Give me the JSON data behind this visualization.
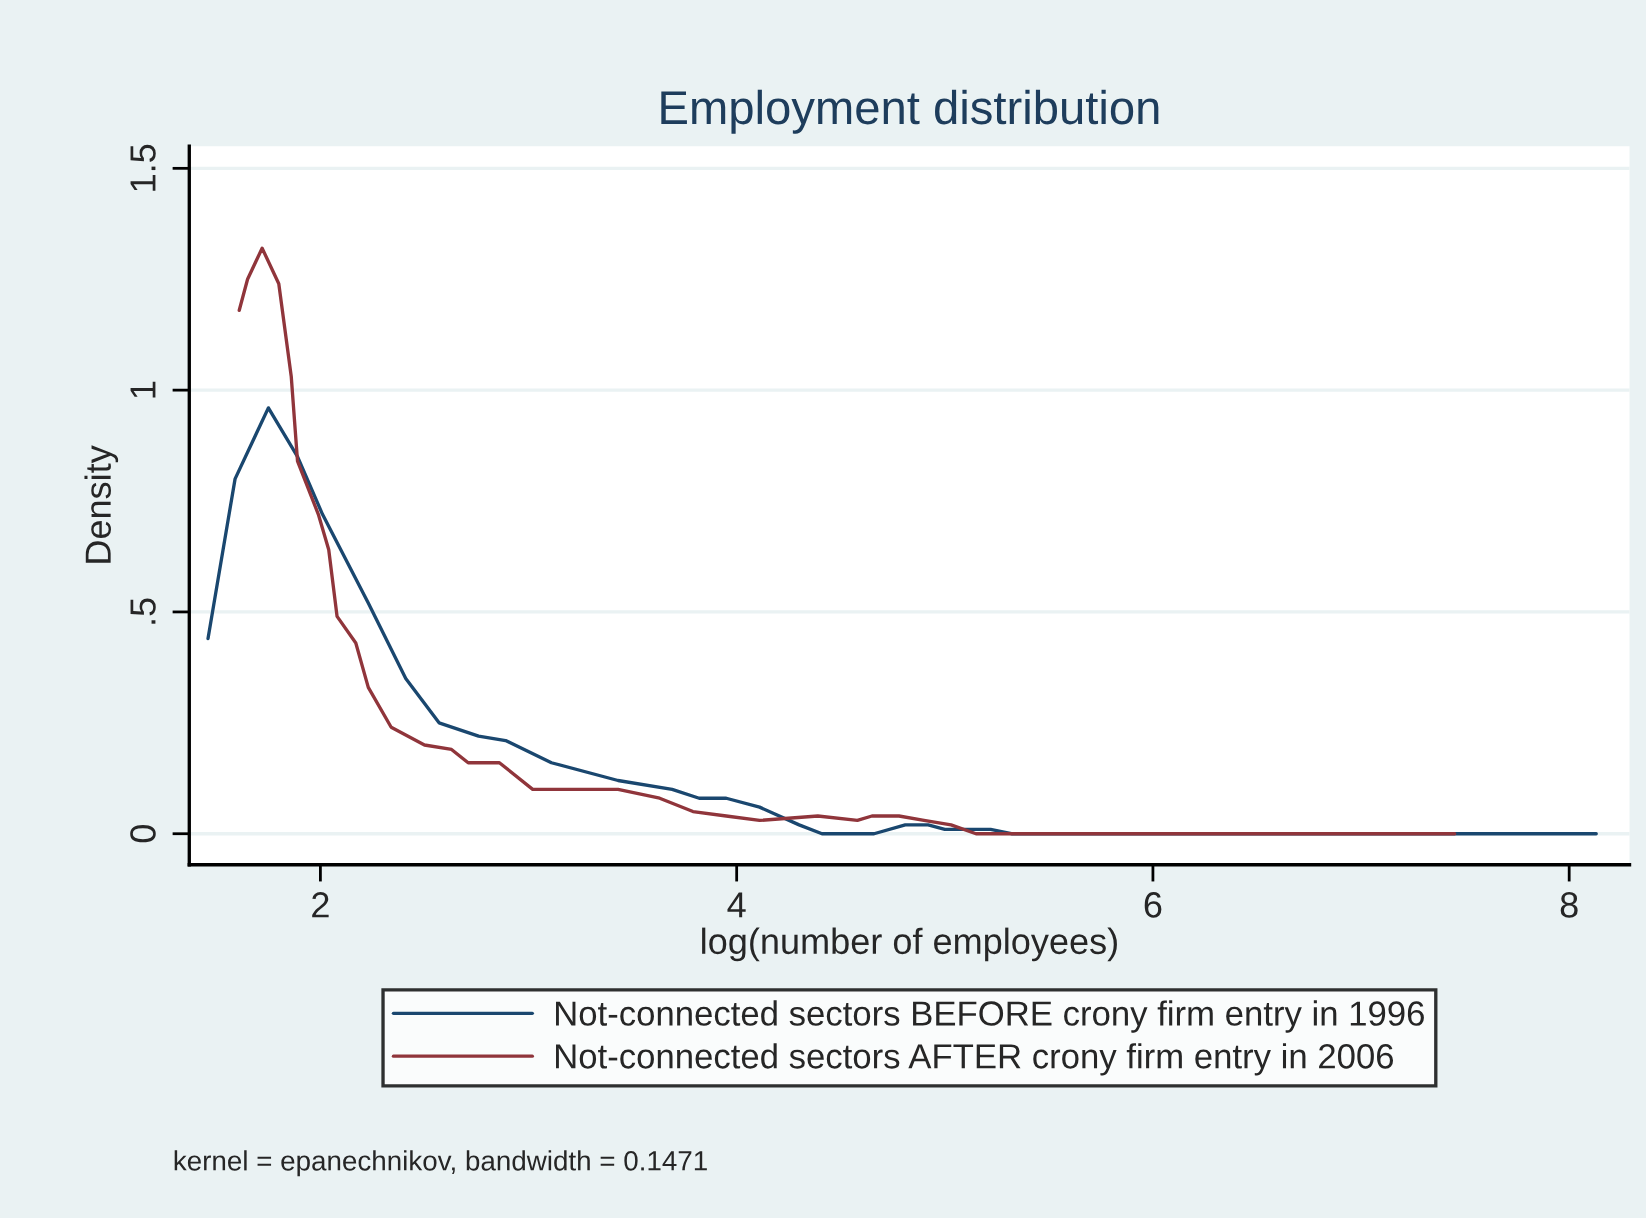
{
  "chart_data": {
    "type": "line",
    "title": "Employment distribution",
    "xlabel": "log(number of employees)",
    "ylabel": "Density",
    "xlim": [
      1.37,
      8.29
    ],
    "ylim": [
      -0.07,
      1.55
    ],
    "xticks": [
      2,
      4,
      6,
      8
    ],
    "yticks": [
      {
        "value": 0,
        "label": "0"
      },
      {
        "value": 0.5,
        "label": ".5"
      },
      {
        "value": 1,
        "label": "1"
      },
      {
        "value": 1.5,
        "label": "1.5"
      }
    ],
    "grid": "y",
    "legend": "bottom",
    "marker": "none",
    "line_style": "solid",
    "series": [
      {
        "name": "Not-connected sectors BEFORE crony firm entry in 1996",
        "color": "#1a476f",
        "x": [
          1.46,
          1.59,
          1.75,
          1.89,
          2.01,
          2.23,
          2.41,
          2.57,
          2.76,
          2.89,
          3.11,
          3.43,
          3.69,
          3.82,
          3.95,
          4.11,
          4.3,
          4.41,
          4.66,
          4.81,
          4.92,
          5.0,
          5.22,
          5.32,
          6.0,
          7.0,
          8.13
        ],
        "values": [
          0.44,
          0.8,
          0.96,
          0.85,
          0.72,
          0.52,
          0.35,
          0.25,
          0.22,
          0.21,
          0.16,
          0.12,
          0.1,
          0.08,
          0.08,
          0.06,
          0.02,
          0.0,
          0.0,
          0.02,
          0.02,
          0.01,
          0.01,
          0.0,
          0.0,
          0.0,
          0.0
        ]
      },
      {
        "name": "Not-connected sectors AFTER crony firm entry in 2006",
        "color": "#90353b",
        "x": [
          1.61,
          1.65,
          1.72,
          1.8,
          1.86,
          1.89,
          1.99,
          2.04,
          2.08,
          2.17,
          2.23,
          2.34,
          2.5,
          2.63,
          2.71,
          2.86,
          3.02,
          3.43,
          3.63,
          3.79,
          3.95,
          4.11,
          4.39,
          4.58,
          4.65,
          4.78,
          4.9,
          5.03,
          5.15,
          5.4,
          6.63,
          6.75,
          6.85,
          7.45
        ],
        "values": [
          1.18,
          1.25,
          1.32,
          1.24,
          1.03,
          0.84,
          0.72,
          0.64,
          0.49,
          0.43,
          0.33,
          0.24,
          0.2,
          0.19,
          0.16,
          0.16,
          0.1,
          0.1,
          0.08,
          0.05,
          0.04,
          0.03,
          0.04,
          0.03,
          0.04,
          0.04,
          0.03,
          0.02,
          0.0,
          0.0,
          0.0,
          0.0,
          0.0,
          0.0
        ]
      }
    ],
    "annotations": [
      "kernel = epanechnikov, bandwidth = 0.1471"
    ]
  }
}
